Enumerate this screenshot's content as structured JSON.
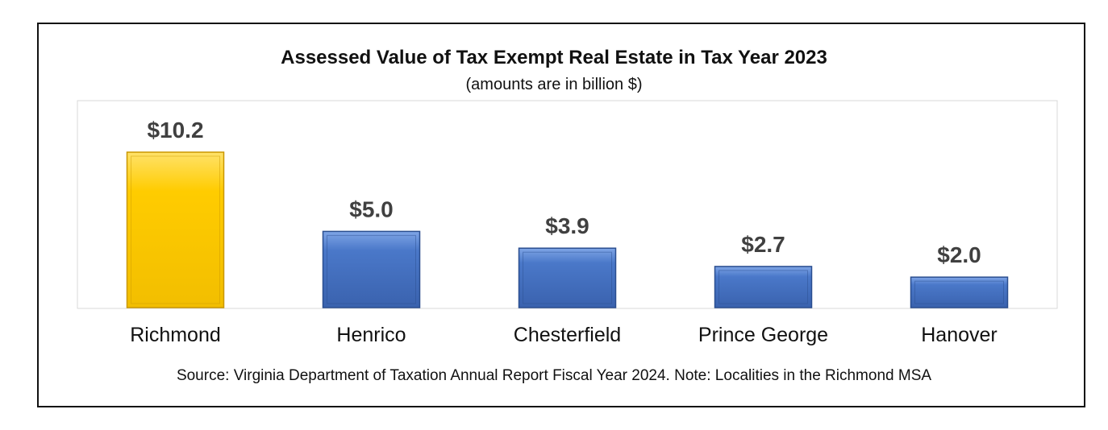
{
  "chart_data": {
    "type": "bar",
    "title": "Assessed Value of Tax Exempt Real Estate in Tax Year 2023",
    "subtitle": "(amounts are in billion $)",
    "categories": [
      "Richmond",
      "Henrico",
      "Chesterfield",
      "Prince George",
      "Hanover"
    ],
    "values": [
      10.2,
      5.0,
      3.9,
      2.7,
      2.0
    ],
    "value_labels": [
      "$10.2",
      "$5.0",
      "$3.9",
      "$2.7",
      "$2.0"
    ],
    "xlabel": "",
    "ylabel": "",
    "ylim": [
      0,
      13
    ],
    "grid": false,
    "legend": "none",
    "colors": {
      "highlight": "#FFCC00",
      "highlight_dark": "#C99700",
      "bar": "#4472C4",
      "bar_dark": "#2A4E8F",
      "label_text": "#404040"
    }
  },
  "footer": {
    "source": "Source: Virginia Department of Taxation Annual Report Fiscal Year 2024. Note: Localities in the Richmond MSA"
  }
}
